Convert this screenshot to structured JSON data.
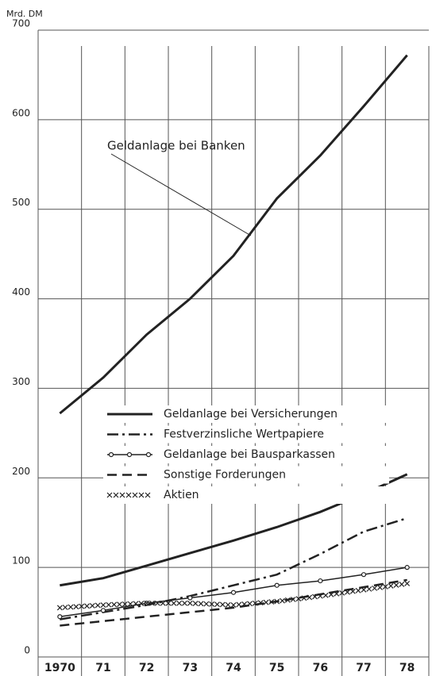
{
  "chart_data": {
    "type": "line",
    "y_label": "Mrd. DM",
    "categories": [
      "1970",
      "71",
      "72",
      "73",
      "74",
      "75",
      "76",
      "77",
      "78"
    ],
    "series": [
      {
        "name": "Geldanlage bei Banken",
        "color": "#222222",
        "values": [
          272,
          312,
          360,
          400,
          448,
          512,
          560,
          615,
          672
        ]
      },
      {
        "name": "Geldanlage bei Versicherungen",
        "color": "#222222",
        "values": [
          80,
          88,
          102,
          116,
          130,
          145,
          162,
          182,
          204
        ]
      },
      {
        "name": "Festverzinsliche Wertpapiere",
        "color": "#222222",
        "values": [
          42,
          50,
          58,
          68,
          80,
          92,
          115,
          140,
          155
        ]
      },
      {
        "name": "Geldanlage bei Bausparkassen",
        "color": "#222222",
        "values": [
          45,
          52,
          60,
          66,
          72,
          80,
          85,
          92,
          100
        ]
      },
      {
        "name": "Sonstige Forderungen",
        "color": "#222222",
        "values": [
          35,
          40,
          45,
          50,
          55,
          62,
          70,
          78,
          86
        ]
      },
      {
        "name": "Aktien",
        "color": "#222222",
        "values": [
          55,
          58,
          60,
          60,
          58,
          62,
          68,
          75,
          82
        ]
      }
    ],
    "ylim": [
      0,
      700
    ],
    "yticks": [
      0,
      100,
      200,
      300,
      400,
      500,
      600,
      700
    ],
    "grid": true
  }
}
